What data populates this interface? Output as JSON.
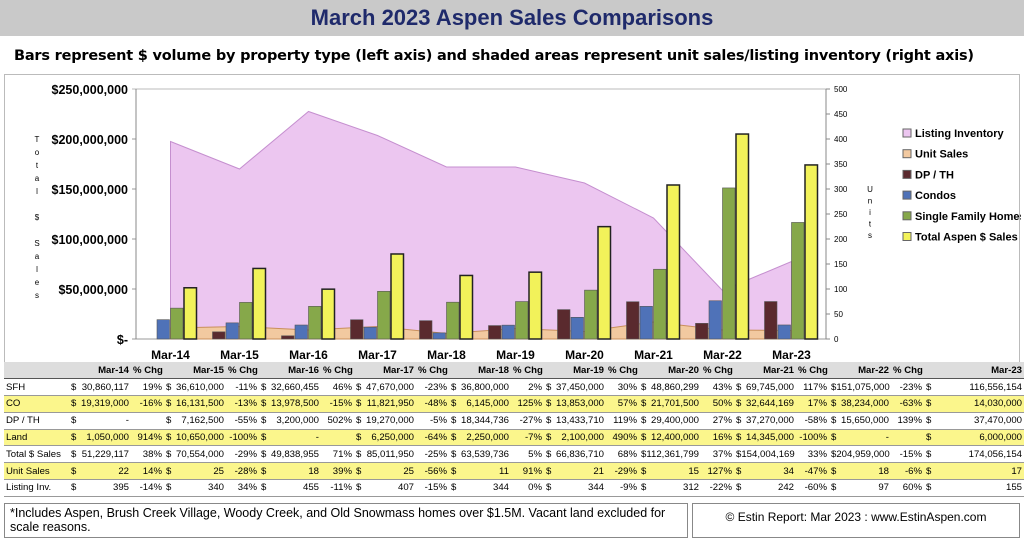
{
  "title": "March 2023 Aspen Sales Comparisons",
  "subtitle": "Bars represent $ volume by property type (left axis) and shaded areas represent unit sales/listing inventory (right axis)",
  "chart_data": {
    "type": "bar",
    "categories": [
      "Mar-14",
      "Mar-15",
      "Mar-16",
      "Mar-17",
      "Mar-18",
      "Mar-19",
      "Mar-20",
      "Mar-21",
      "Mar-22",
      "Mar-23"
    ],
    "ylabel": "Total $ Sales",
    "y2label": "Units",
    "ylim": [
      0,
      250000000
    ],
    "y2lim": [
      0,
      500
    ],
    "yticks": [
      "$-",
      "$50,000,000",
      "$100,000,000",
      "$150,000,000",
      "$200,000,000",
      "$250,000,000"
    ],
    "y2ticks": [
      "0",
      "50",
      "100",
      "150",
      "200",
      "250",
      "300",
      "350",
      "400",
      "450",
      "500"
    ],
    "legend_position": "right",
    "series": [
      {
        "name": "Listing Inventory",
        "type": "area",
        "axis": "right",
        "color": "#ecc6f0",
        "values": [
          395,
          340,
          455,
          407,
          344,
          344,
          312,
          242,
          97,
          155
        ]
      },
      {
        "name": "Unit Sales",
        "type": "area",
        "axis": "right",
        "color": "#f2c9a0",
        "values": [
          22,
          25,
          18,
          25,
          11,
          21,
          15,
          34,
          18,
          17
        ]
      },
      {
        "name": "DP / TH",
        "type": "bar",
        "axis": "left",
        "color": "#5a2a2e",
        "values": [
          0,
          7162500,
          3200000,
          19270000,
          18344736,
          13433710,
          29400000,
          37270000,
          15650000,
          37470000
        ]
      },
      {
        "name": "Condos",
        "type": "bar",
        "axis": "left",
        "color": "#4f72b8",
        "values": [
          19319000,
          16131500,
          13978500,
          11821950,
          6145000,
          13853000,
          21701500,
          32644169,
          38234000,
          14030000
        ]
      },
      {
        "name": "Single Family Homes",
        "type": "bar",
        "axis": "left",
        "color": "#86a84a",
        "values": [
          30860117,
          36610000,
          32660455,
          47670000,
          36800000,
          37450000,
          48860299,
          69745000,
          151075000,
          116556154
        ]
      },
      {
        "name": "Total Aspen $ Sales",
        "type": "bar",
        "axis": "left",
        "color": "#f2f25a",
        "values": [
          51229117,
          70554000,
          49838955,
          85011950,
          63539736,
          66836710,
          112361799,
          154004169,
          204959000,
          174056154
        ]
      }
    ]
  },
  "table": {
    "headers": [
      "Mar-14",
      "% Chg",
      "Mar-15",
      "% Chg",
      "Mar-16",
      "% Chg",
      "Mar-17",
      "% Chg",
      "Mar-18",
      "% Chg",
      "Mar-19",
      "% Chg",
      "Mar-20",
      "% Chg",
      "Mar-21",
      "% Chg",
      "Mar-22",
      "% Chg",
      "Mar-23"
    ],
    "rows": [
      {
        "label": "SFH",
        "values": [
          "30,860,117",
          "36,610,000",
          "32,660,455",
          "47,670,000",
          "36,800,000",
          "37,450,000",
          "48,860,299",
          "69,745,000",
          "151,075,000",
          "116,556,154"
        ],
        "pct": [
          "19%",
          "-11%",
          "46%",
          "-23%",
          "2%",
          "30%",
          "43%",
          "117%",
          "-23%"
        ]
      },
      {
        "label": "CO",
        "values": [
          "19,319,000",
          "16,131,500",
          "13,978,500",
          "11,821,950",
          "6,145,000",
          "13,853,000",
          "21,701,500",
          "32,644,169",
          "38,234,000",
          "14,030,000"
        ],
        "pct": [
          "-16%",
          "-13%",
          "-15%",
          "-48%",
          "125%",
          "57%",
          "50%",
          "17%",
          "-63%"
        ]
      },
      {
        "label": "DP / TH",
        "values": [
          "-",
          "7,162,500",
          "3,200,000",
          "19,270,000",
          "18,344,736",
          "13,433,710",
          "29,400,000",
          "37,270,000",
          "15,650,000",
          "37,470,000"
        ],
        "pct": [
          "",
          "-55%",
          "502%",
          "-5%",
          "-27%",
          "119%",
          "27%",
          "-58%",
          "139%"
        ]
      },
      {
        "label": "Land",
        "values": [
          "1,050,000",
          "10,650,000",
          "-",
          "6,250,000",
          "2,250,000",
          "2,100,000",
          "12,400,000",
          "14,345,000",
          "-",
          "6,000,000"
        ],
        "pct": [
          "914%",
          "-100%",
          "",
          "-64%",
          "-7%",
          "490%",
          "16%",
          "-100%",
          ""
        ]
      },
      {
        "label": "Total $ Sales",
        "values": [
          "51,229,117",
          "70,554,000",
          "49,838,955",
          "85,011,950",
          "63,539,736",
          "66,836,710",
          "112,361,799",
          "154,004,169",
          "204,959,000",
          "174,056,154"
        ],
        "pct": [
          "38%",
          "-29%",
          "71%",
          "-25%",
          "5%",
          "68%",
          "37%",
          "33%",
          "-15%"
        ]
      },
      {
        "label": "Unit Sales",
        "values": [
          "22",
          "25",
          "18",
          "25",
          "11",
          "21",
          "15",
          "34",
          "18",
          "17"
        ],
        "pct": [
          "14%",
          "-28%",
          "39%",
          "-56%",
          "91%",
          "-29%",
          "127%",
          "-47%",
          "-6%"
        ]
      },
      {
        "label": "Listing Inv.",
        "values": [
          "395",
          "340",
          "455",
          "407",
          "344",
          "344",
          "312",
          "242",
          "97",
          "155"
        ],
        "pct": [
          "-14%",
          "34%",
          "-11%",
          "-15%",
          "0%",
          "-9%",
          "-22%",
          "-60%",
          "60%"
        ]
      }
    ],
    "currency": "$"
  },
  "footer": {
    "note": "*Includes Aspen, Brush Creek Village, Woody Creek, and Old Snowmass homes over $1.5M. Vacant land excluded for scale reasons.",
    "credit": "© Estin Report: Mar 2023 : www.EstinAspen.com"
  }
}
